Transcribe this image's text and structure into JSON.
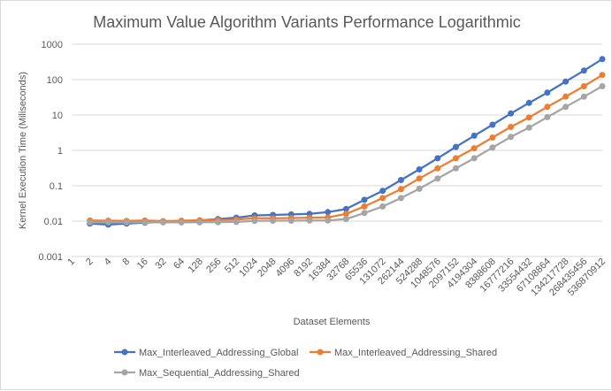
{
  "chart_data": {
    "type": "line",
    "title": "Maximum Value Algorithm Variants Performance Logarithmic",
    "xlabel": "Dataset Elements",
    "ylabel": "Kernel Execution Time (Miliseconds)",
    "y_scale": "log",
    "ylim": [
      0.001,
      1000
    ],
    "y_ticks": [
      "0.001",
      "0.01",
      "0.1",
      "1",
      "10",
      "100",
      "1000"
    ],
    "grid": "horizontal",
    "legend_position": "bottom",
    "categories": [
      "1",
      "2",
      "4",
      "8",
      "16",
      "32",
      "64",
      "128",
      "256",
      "512",
      "1024",
      "2048",
      "4096",
      "8192",
      "16384",
      "32768",
      "65536",
      "131072",
      "262144",
      "524288",
      "1048576",
      "2097152",
      "4194304",
      "8388608",
      "16777216",
      "33554432",
      "67108864",
      "134217728",
      "268435456",
      "536870912"
    ],
    "series": [
      {
        "name": "Max_Interleaved_Addressing_Global",
        "color": "#4472c4",
        "values": [
          null,
          0.0085,
          0.008,
          0.0085,
          0.009,
          0.0095,
          0.0098,
          0.0105,
          0.0115,
          0.0125,
          0.0145,
          0.015,
          0.0155,
          0.016,
          0.018,
          0.022,
          0.04,
          0.072,
          0.145,
          0.29,
          0.6,
          1.25,
          2.6,
          5.3,
          11,
          22,
          43,
          88,
          180,
          380
        ]
      },
      {
        "name": "Max_Interleaved_Addressing_Shared",
        "color": "#ed7d31",
        "values": [
          null,
          0.0105,
          0.0103,
          0.0102,
          0.0104,
          0.01,
          0.0103,
          0.0106,
          0.0107,
          0.011,
          0.012,
          0.012,
          0.0122,
          0.0125,
          0.0127,
          0.016,
          0.026,
          0.045,
          0.08,
          0.16,
          0.31,
          0.6,
          1.15,
          2.3,
          4.6,
          8.5,
          17,
          33,
          65,
          135
        ]
      },
      {
        "name": "Max_Sequential_Addressing_Shared",
        "color": "#a5a5a5",
        "values": [
          null,
          0.0092,
          0.0092,
          0.0092,
          0.0093,
          0.0092,
          0.0092,
          0.0093,
          0.0094,
          0.0095,
          0.0102,
          0.0103,
          0.0103,
          0.0104,
          0.0105,
          0.0115,
          0.017,
          0.026,
          0.045,
          0.082,
          0.16,
          0.31,
          0.6,
          1.2,
          2.4,
          4.4,
          8.7,
          17,
          33,
          65
        ]
      }
    ]
  }
}
